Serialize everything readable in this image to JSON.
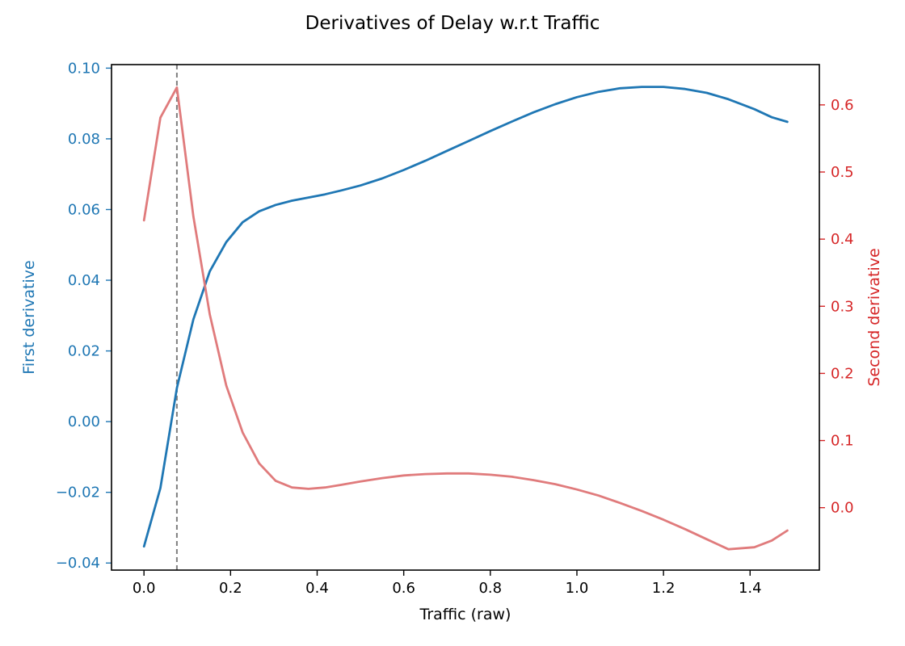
{
  "chart_data": {
    "type": "line",
    "title": "Derivatives of Delay w.r.t Traffic",
    "xlabel": "Traffic (raw)",
    "ylabel_left": "First derivative",
    "ylabel_right": "Second derivative",
    "xlim": [
      -0.075,
      1.56
    ],
    "ylim_left": [
      -0.042,
      0.101
    ],
    "ylim_right": [
      -0.093,
      0.66
    ],
    "xticks": [
      0.0,
      0.2,
      0.4,
      0.6,
      0.8,
      1.0,
      1.2,
      1.4
    ],
    "xtick_labels": [
      "0.0",
      "0.2",
      "0.4",
      "0.6",
      "0.8",
      "1.0",
      "1.2",
      "1.4"
    ],
    "yticks_left": [
      -0.04,
      -0.02,
      0.0,
      0.02,
      0.04,
      0.06,
      0.08,
      0.1
    ],
    "ytick_labels_left": [
      "−0.04",
      "−0.02",
      "0.00",
      "0.02",
      "0.04",
      "0.06",
      "0.08",
      "0.10"
    ],
    "yticks_right": [
      0.0,
      0.1,
      0.2,
      0.3,
      0.4,
      0.5,
      0.6
    ],
    "ytick_labels_right": [
      "0.0",
      "0.1",
      "0.2",
      "0.3",
      "0.4",
      "0.5",
      "0.6"
    ],
    "grid": false,
    "vline": {
      "x": 0.076,
      "style": "dashed",
      "color": "#808080"
    },
    "colors": {
      "left_axis": "#1f77b4",
      "right_axis": "#d62728",
      "first": "#1f77b4",
      "second": "#e07b7c"
    },
    "series": [
      {
        "axis": "left",
        "x": [
          0.0,
          0.038,
          0.076,
          0.114,
          0.152,
          0.19,
          0.228,
          0.266,
          0.304,
          0.342,
          0.38,
          0.418,
          0.456,
          0.5,
          0.55,
          0.6,
          0.65,
          0.7,
          0.75,
          0.8,
          0.85,
          0.9,
          0.95,
          1.0,
          1.05,
          1.1,
          1.15,
          1.2,
          1.25,
          1.3,
          1.35,
          1.41,
          1.45,
          1.486
        ],
        "values": [
          -0.0353,
          -0.0188,
          0.0095,
          0.0289,
          0.0425,
          0.0508,
          0.0564,
          0.0595,
          0.0613,
          0.0625,
          0.0634,
          0.0643,
          0.0654,
          0.0668,
          0.0688,
          0.0712,
          0.0738,
          0.0766,
          0.0794,
          0.0822,
          0.0849,
          0.0875,
          0.0898,
          0.0918,
          0.0933,
          0.0943,
          0.0947,
          0.0947,
          0.0941,
          0.093,
          0.0912,
          0.0884,
          0.0861,
          0.0848
        ]
      },
      {
        "axis": "right",
        "x": [
          0.0,
          0.038,
          0.076,
          0.114,
          0.152,
          0.19,
          0.228,
          0.266,
          0.304,
          0.342,
          0.38,
          0.418,
          0.456,
          0.5,
          0.55,
          0.6,
          0.65,
          0.7,
          0.75,
          0.8,
          0.85,
          0.9,
          0.95,
          1.0,
          1.05,
          1.1,
          1.15,
          1.2,
          1.25,
          1.3,
          1.35,
          1.41,
          1.45,
          1.486
        ],
        "values": [
          0.428,
          0.581,
          0.626,
          0.434,
          0.288,
          0.182,
          0.112,
          0.066,
          0.04,
          0.03,
          0.028,
          0.03,
          0.034,
          0.039,
          0.044,
          0.048,
          0.05,
          0.051,
          0.051,
          0.049,
          0.046,
          0.041,
          0.035,
          0.027,
          0.018,
          0.007,
          -0.005,
          -0.018,
          -0.032,
          -0.047,
          -0.062,
          -0.059,
          -0.049,
          -0.034
        ]
      }
    ]
  }
}
